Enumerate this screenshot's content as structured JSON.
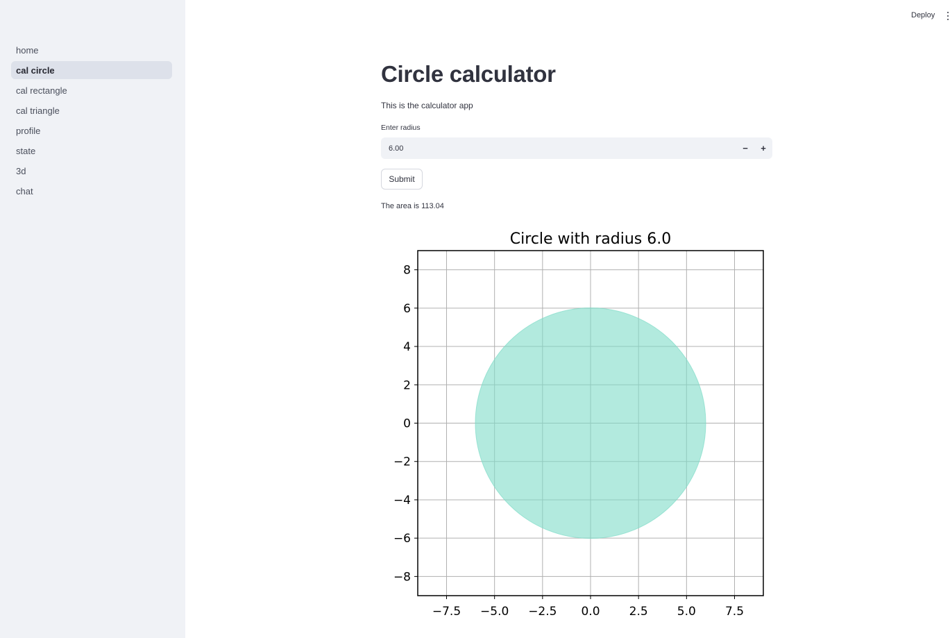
{
  "sidebar": {
    "items": [
      {
        "label": "home",
        "active": false
      },
      {
        "label": "cal circle",
        "active": true
      },
      {
        "label": "cal rectangle",
        "active": false
      },
      {
        "label": "cal triangle",
        "active": false
      },
      {
        "label": "profile",
        "active": false
      },
      {
        "label": "state",
        "active": false
      },
      {
        "label": "3d",
        "active": false
      },
      {
        "label": "chat",
        "active": false
      }
    ]
  },
  "header": {
    "deploy_label": "Deploy",
    "menu_icon": "vertical-dots-icon"
  },
  "main": {
    "title": "Circle calculator",
    "subtitle": "This is the calculator app",
    "radius_input": {
      "label": "Enter radius",
      "value": "6.00",
      "minus_label": "−",
      "plus_label": "+"
    },
    "submit_label": "Submit",
    "result_text": "The area is 113.04"
  },
  "chart_data": {
    "type": "scatter",
    "title": "Circle with radius 6.0",
    "shape": {
      "kind": "circle",
      "center": [
        0,
        0
      ],
      "radius": 6.0,
      "fill": "#7fdcc8",
      "alpha": 0.6
    },
    "xlim": [
      -9,
      9
    ],
    "ylim": [
      -9,
      9
    ],
    "xticks": [
      -7.5,
      -5.0,
      -2.5,
      0.0,
      2.5,
      5.0,
      7.5
    ],
    "xtick_labels": [
      "−7.5",
      "−5.0",
      "−2.5",
      "0.0",
      "2.5",
      "5.0",
      "7.5"
    ],
    "yticks": [
      8,
      6,
      4,
      2,
      0,
      -2,
      -4,
      -6,
      -8
    ],
    "ytick_labels": [
      "8",
      "6",
      "4",
      "2",
      "0",
      "−2",
      "−4",
      "−6",
      "−8"
    ],
    "grid": true,
    "xlabel": "",
    "ylabel": ""
  },
  "colors": {
    "sidebar_bg": "#f0f2f6",
    "active_item_bg": "#dde1ea",
    "input_bg": "#f0f2f6",
    "text": "#31333f"
  }
}
